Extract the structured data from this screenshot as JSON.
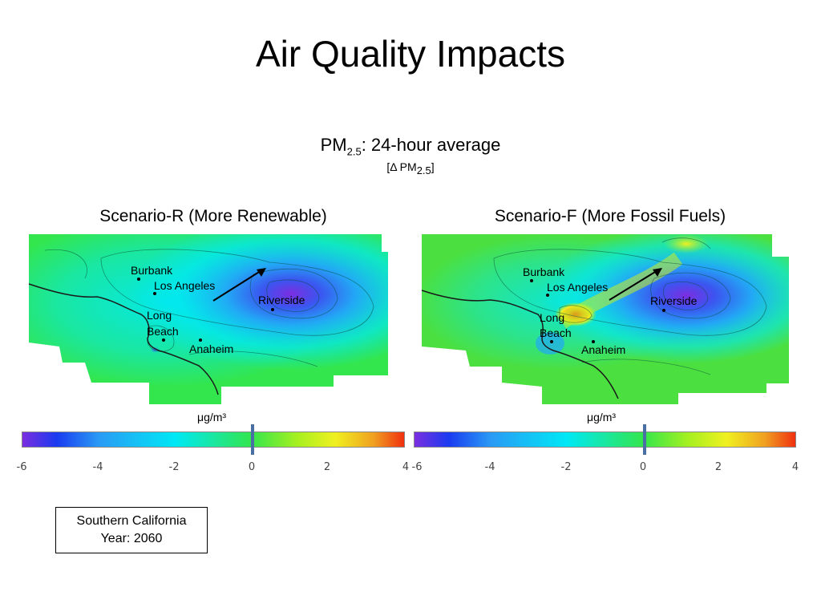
{
  "slide": {
    "title": "Air Quality Impacts",
    "subtitle_pm": "PM",
    "subtitle_sub": "2.5",
    "subtitle_rest": ": 24-hour average",
    "delta_open": "[Δ PM",
    "delta_sub": "2.5",
    "delta_close": "]",
    "note_line1": "Southern California",
    "note_line2": "Year: 2060"
  },
  "colors": {
    "background": "#ffffff",
    "field_base": "#33e64d",
    "low_purple": "#7b2ee0",
    "mid_cyan": "#00e8f5",
    "high_red": "#f03010",
    "marker_blue": "#4a6fa5"
  },
  "maps": [
    {
      "title": "Scenario-R (More Renewable)",
      "cities": [
        {
          "name": "Burbank"
        },
        {
          "name": "Los Angeles"
        },
        {
          "name": "Riverside"
        },
        {
          "name": "Long"
        },
        {
          "name": "Beach"
        },
        {
          "name": "Anaheim"
        }
      ],
      "unit": "μg/m³",
      "colorbar": {
        "min": -6,
        "max": 4,
        "marker_value": 0,
        "ticks": [
          "-6",
          "-4",
          "-2",
          "0",
          "2",
          "4"
        ]
      }
    },
    {
      "title": "Scenario-F (More Fossil Fuels)",
      "cities": [
        {
          "name": "Burbank"
        },
        {
          "name": "Los Angeles"
        },
        {
          "name": "Riverside"
        },
        {
          "name": "Long"
        },
        {
          "name": "Beach"
        },
        {
          "name": "Anaheim"
        }
      ],
      "unit": "μg/m³",
      "colorbar": {
        "min": -6,
        "max": 4,
        "marker_value": 0,
        "ticks": [
          "-6",
          "-4",
          "-2",
          "0",
          "2",
          "4"
        ]
      }
    }
  ]
}
